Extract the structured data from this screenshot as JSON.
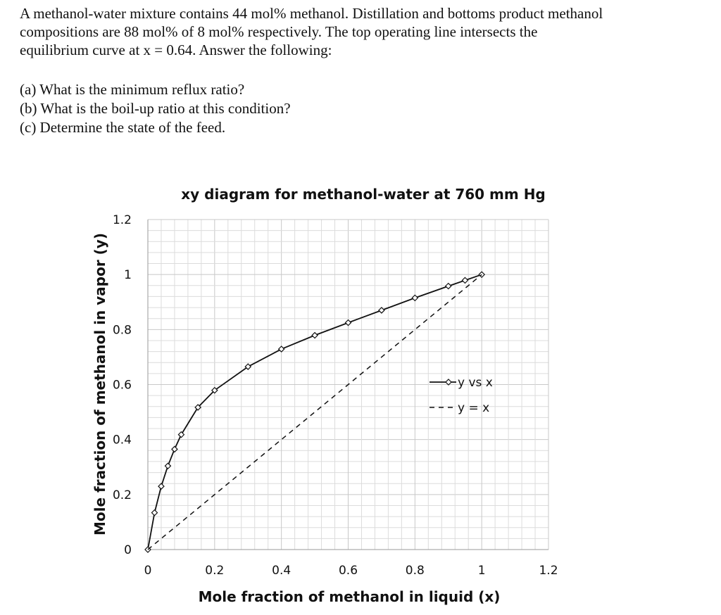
{
  "problem": {
    "lines": [
      "A methanol-water mixture contains 44 mol% methanol. Distillation and bottoms product methanol",
      "compositions are 88 mol% of 8 mol% respectively. The top operating line intersects the",
      "equilibrium curve at x = 0.64. Answer the following:"
    ],
    "questions": [
      "(a) What is the minimum reflux ratio?",
      "(b) What is the boil-up ratio at this condition?",
      "(c) Determine the state of the feed."
    ]
  },
  "chart_data": {
    "type": "line",
    "title": "xy diagram for methanol-water at 760 mm Hg",
    "xlabel": "Mole fraction of methanol in liquid (x)",
    "ylabel": "Mole fraction of methanol in vapor (y)",
    "xlim": [
      0,
      1.2
    ],
    "ylim": [
      0,
      1.2
    ],
    "xticks": [
      "0",
      "0.2",
      "0.4",
      "0.6",
      "0.8",
      "1",
      "1.2"
    ],
    "yticks": [
      "0",
      "0.2",
      "0.4",
      "0.6",
      "0.8",
      "1",
      "1.2"
    ],
    "grid": true,
    "legend_position": "right",
    "series": [
      {
        "name": "y vs x",
        "style": "solid-markers",
        "color": "#111111",
        "x": [
          0,
          0.02,
          0.04,
          0.06,
          0.08,
          0.1,
          0.15,
          0.2,
          0.3,
          0.4,
          0.5,
          0.6,
          0.7,
          0.8,
          0.9,
          0.95,
          1.0
        ],
        "y": [
          0,
          0.134,
          0.23,
          0.304,
          0.365,
          0.418,
          0.517,
          0.579,
          0.665,
          0.729,
          0.779,
          0.825,
          0.87,
          0.915,
          0.958,
          0.979,
          1.0
        ]
      },
      {
        "name": "y = x",
        "style": "dashed",
        "color": "#111111",
        "x": [
          0,
          1.0
        ],
        "y": [
          0,
          1.0
        ]
      }
    ]
  }
}
